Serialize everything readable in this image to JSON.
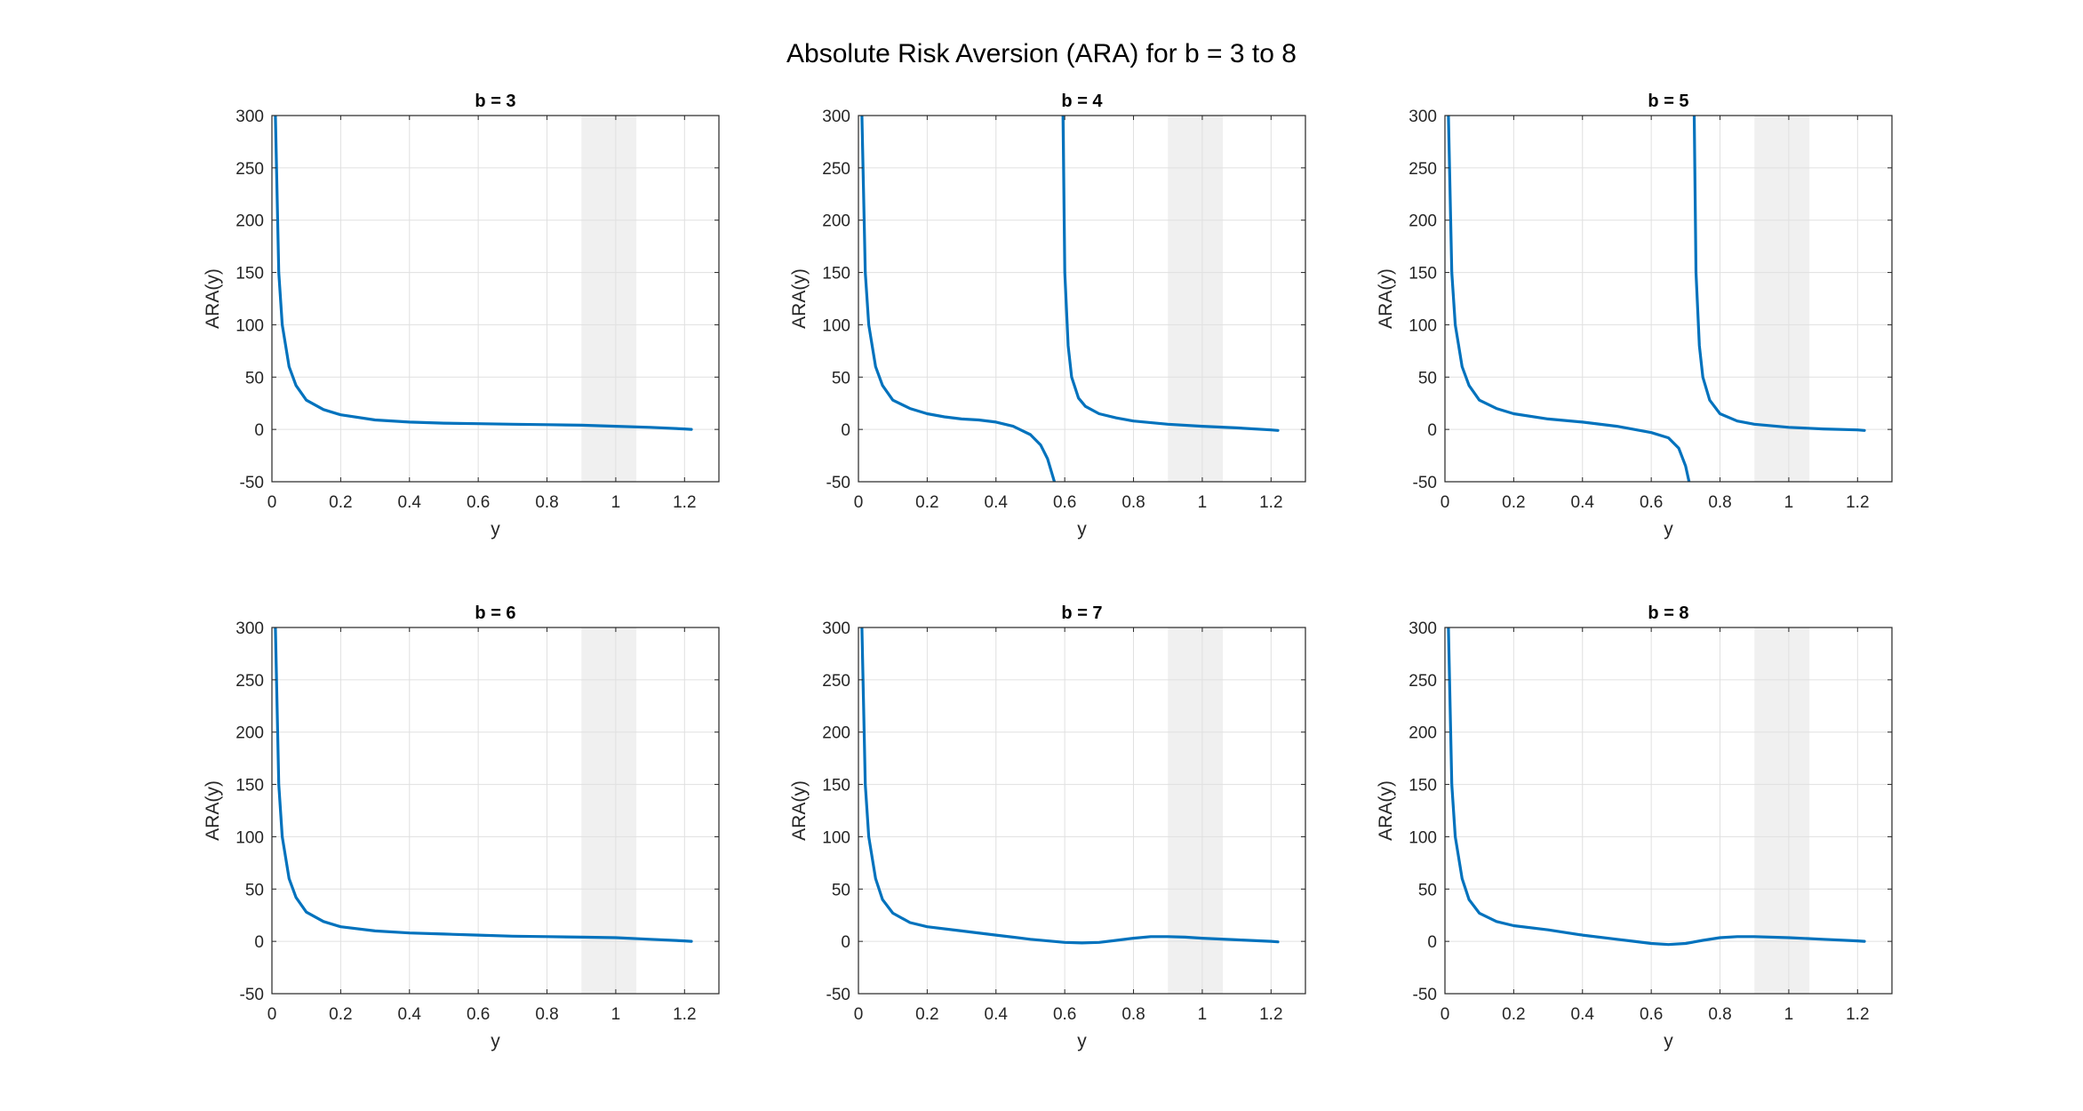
{
  "figure": {
    "title": "Absolute Risk Aversion (ARA) for b = 3 to 8"
  },
  "colors": {
    "line": "#0072BD",
    "band": "#f0f0f0",
    "grid": "#e0e0e0",
    "axis": "#262626"
  },
  "chart_data": [
    {
      "type": "line",
      "title": "b = 3",
      "xlabel": "y",
      "ylabel": "ARA(y)",
      "xlim": [
        0,
        1.3
      ],
      "ylim": [
        -50,
        300
      ],
      "xticks": [
        0,
        0.2,
        0.4,
        0.6,
        0.8,
        1,
        1.2
      ],
      "xtick_labels": [
        "0",
        "0.2",
        "0.4",
        "0.6",
        "0.8",
        "1",
        "1.2"
      ],
      "yticks": [
        -50,
        0,
        50,
        100,
        150,
        200,
        250,
        300
      ],
      "ytick_labels": [
        "-50",
        "0",
        "50",
        "100",
        "150",
        "200",
        "250",
        "300"
      ],
      "grid": true,
      "shaded_band": [
        0.9,
        1.06
      ],
      "series": [
        {
          "x": [
            0.01,
            0.02,
            0.03,
            0.05,
            0.07,
            0.1,
            0.15,
            0.2,
            0.3,
            0.4,
            0.5,
            0.6,
            0.7,
            0.8,
            0.9,
            1.0,
            1.1,
            1.2,
            1.22
          ],
          "y": [
            300,
            150,
            100,
            60,
            42,
            28,
            19,
            14,
            9,
            7,
            6,
            5.5,
            5,
            4.5,
            4,
            3,
            2,
            0.5,
            0
          ]
        }
      ]
    },
    {
      "type": "line",
      "title": "b = 4",
      "xlabel": "y",
      "ylabel": "ARA(y)",
      "xlim": [
        0,
        1.3
      ],
      "ylim": [
        -50,
        300
      ],
      "xticks": [
        0,
        0.2,
        0.4,
        0.6,
        0.8,
        1,
        1.2
      ],
      "xtick_labels": [
        "0",
        "0.2",
        "0.4",
        "0.6",
        "0.8",
        "1",
        "1.2"
      ],
      "yticks": [
        -50,
        0,
        50,
        100,
        150,
        200,
        250,
        300
      ],
      "ytick_labels": [
        "-50",
        "0",
        "50",
        "100",
        "150",
        "200",
        "250",
        "300"
      ],
      "grid": true,
      "shaded_band": [
        0.9,
        1.06
      ],
      "series": [
        {
          "x": [
            0.01,
            0.02,
            0.03,
            0.05,
            0.07,
            0.1,
            0.15,
            0.2,
            0.25,
            0.3,
            0.35,
            0.4,
            0.45,
            0.5,
            0.53,
            0.55,
            0.57
          ],
          "y": [
            300,
            150,
            100,
            60,
            42,
            28,
            20,
            15,
            12,
            10,
            9,
            7,
            3,
            -5,
            -15,
            -28,
            -50
          ]
        },
        {
          "x": [
            0.595,
            0.6,
            0.61,
            0.62,
            0.64,
            0.66,
            0.7,
            0.75,
            0.8,
            0.9,
            1.0,
            1.1,
            1.2,
            1.22
          ],
          "y": [
            300,
            150,
            80,
            50,
            30,
            22,
            15,
            11,
            8,
            5,
            3,
            1.5,
            -0.5,
            -1
          ]
        }
      ]
    },
    {
      "type": "line",
      "title": "b = 5",
      "xlabel": "y",
      "ylabel": "ARA(y)",
      "xlim": [
        0,
        1.3
      ],
      "ylim": [
        -50,
        300
      ],
      "xticks": [
        0,
        0.2,
        0.4,
        0.6,
        0.8,
        1,
        1.2
      ],
      "xtick_labels": [
        "0",
        "0.2",
        "0.4",
        "0.6",
        "0.8",
        "1",
        "1.2"
      ],
      "yticks": [
        -50,
        0,
        50,
        100,
        150,
        200,
        250,
        300
      ],
      "ytick_labels": [
        "-50",
        "0",
        "50",
        "100",
        "150",
        "200",
        "250",
        "300"
      ],
      "grid": true,
      "shaded_band": [
        0.9,
        1.06
      ],
      "series": [
        {
          "x": [
            0.01,
            0.02,
            0.03,
            0.05,
            0.07,
            0.1,
            0.15,
            0.2,
            0.3,
            0.4,
            0.5,
            0.6,
            0.65,
            0.68,
            0.7,
            0.71
          ],
          "y": [
            300,
            150,
            100,
            60,
            42,
            28,
            20,
            15,
            10,
            7,
            3,
            -3,
            -8,
            -18,
            -35,
            -50
          ]
        },
        {
          "x": [
            0.725,
            0.73,
            0.74,
            0.75,
            0.77,
            0.8,
            0.85,
            0.9,
            1.0,
            1.1,
            1.2,
            1.22
          ],
          "y": [
            300,
            150,
            80,
            50,
            28,
            15,
            8,
            5,
            2,
            0.5,
            -0.5,
            -1
          ]
        }
      ]
    },
    {
      "type": "line",
      "title": "b = 6",
      "xlabel": "y",
      "ylabel": "ARA(y)",
      "xlim": [
        0,
        1.3
      ],
      "ylim": [
        -50,
        300
      ],
      "xticks": [
        0,
        0.2,
        0.4,
        0.6,
        0.8,
        1,
        1.2
      ],
      "xtick_labels": [
        "0",
        "0.2",
        "0.4",
        "0.6",
        "0.8",
        "1",
        "1.2"
      ],
      "yticks": [
        -50,
        0,
        50,
        100,
        150,
        200,
        250,
        300
      ],
      "ytick_labels": [
        "-50",
        "0",
        "50",
        "100",
        "150",
        "200",
        "250",
        "300"
      ],
      "grid": true,
      "shaded_band": [
        0.9,
        1.06
      ],
      "series": [
        {
          "x": [
            0.01,
            0.02,
            0.03,
            0.05,
            0.07,
            0.1,
            0.15,
            0.2,
            0.3,
            0.4,
            0.5,
            0.6,
            0.7,
            0.8,
            0.9,
            1.0,
            1.1,
            1.2,
            1.22
          ],
          "y": [
            300,
            150,
            100,
            60,
            42,
            28,
            19,
            14,
            10,
            8,
            7,
            6,
            5,
            4.5,
            4,
            3.5,
            2,
            0.5,
            0
          ]
        }
      ]
    },
    {
      "type": "line",
      "title": "b = 7",
      "xlabel": "y",
      "ylabel": "ARA(y)",
      "xlim": [
        0,
        1.3
      ],
      "ylim": [
        -50,
        300
      ],
      "xticks": [
        0,
        0.2,
        0.4,
        0.6,
        0.8,
        1,
        1.2
      ],
      "xtick_labels": [
        "0",
        "0.2",
        "0.4",
        "0.6",
        "0.8",
        "1",
        "1.2"
      ],
      "yticks": [
        -50,
        0,
        50,
        100,
        150,
        200,
        250,
        300
      ],
      "ytick_labels": [
        "-50",
        "0",
        "50",
        "100",
        "150",
        "200",
        "250",
        "300"
      ],
      "grid": true,
      "shaded_band": [
        0.9,
        1.06
      ],
      "series": [
        {
          "x": [
            0.01,
            0.02,
            0.03,
            0.05,
            0.07,
            0.1,
            0.15,
            0.2,
            0.3,
            0.4,
            0.5,
            0.6,
            0.65,
            0.7,
            0.75,
            0.8,
            0.85,
            0.9,
            0.95,
            1.0,
            1.1,
            1.2,
            1.22
          ],
          "y": [
            300,
            150,
            100,
            60,
            40,
            27,
            18,
            14,
            10,
            6,
            2,
            -1,
            -1.5,
            -1,
            1,
            3,
            4.5,
            4.5,
            4,
            3,
            1.5,
            0,
            -0.5
          ]
        }
      ]
    },
    {
      "type": "line",
      "title": "b = 8",
      "xlabel": "y",
      "ylabel": "ARA(y)",
      "xlim": [
        0,
        1.3
      ],
      "ylim": [
        -50,
        300
      ],
      "xticks": [
        0,
        0.2,
        0.4,
        0.6,
        0.8,
        1,
        1.2
      ],
      "xtick_labels": [
        "0",
        "0.2",
        "0.4",
        "0.6",
        "0.8",
        "1",
        "1.2"
      ],
      "yticks": [
        -50,
        0,
        50,
        100,
        150,
        200,
        250,
        300
      ],
      "ytick_labels": [
        "-50",
        "0",
        "50",
        "100",
        "150",
        "200",
        "250",
        "300"
      ],
      "grid": true,
      "shaded_band": [
        0.9,
        1.06
      ],
      "series": [
        {
          "x": [
            0.01,
            0.02,
            0.03,
            0.05,
            0.07,
            0.1,
            0.15,
            0.2,
            0.3,
            0.4,
            0.5,
            0.55,
            0.6,
            0.65,
            0.7,
            0.75,
            0.8,
            0.85,
            0.9,
            1.0,
            1.1,
            1.2,
            1.22
          ],
          "y": [
            300,
            150,
            100,
            60,
            40,
            27,
            19,
            15,
            11,
            6,
            2,
            0,
            -2,
            -3,
            -2,
            1,
            3.5,
            4.5,
            4.5,
            3.5,
            2,
            0.5,
            0
          ]
        }
      ]
    }
  ]
}
